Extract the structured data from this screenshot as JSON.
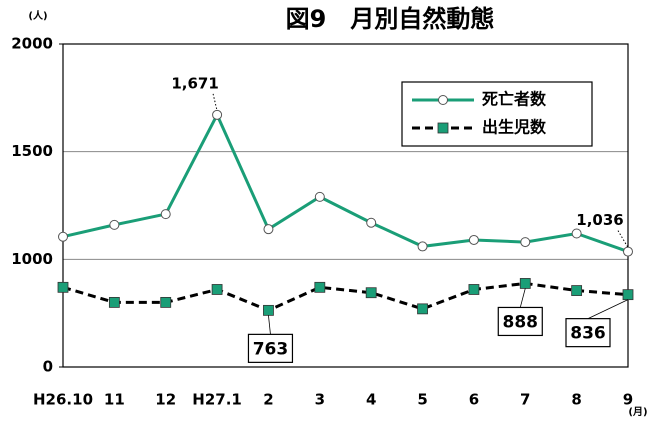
{
  "chart_data": {
    "type": "line",
    "title": "図9　月別自然動態",
    "y_label": "(人)",
    "x_label": "(月)",
    "categories": [
      "H26.10",
      "11",
      "12",
      "H27.1",
      "2",
      "3",
      "4",
      "5",
      "6",
      "7",
      "8",
      "9"
    ],
    "series": [
      {
        "name": "死亡者数",
        "color": "#1a9e77",
        "marker": "circle",
        "dash": false,
        "values": [
          1105,
          1160,
          1210,
          1671,
          1140,
          1290,
          1170,
          1060,
          1090,
          1080,
          1120,
          1036
        ],
        "value_labels": [
          null,
          null,
          null,
          "1,671",
          null,
          null,
          null,
          null,
          null,
          null,
          null,
          "1,036"
        ]
      },
      {
        "name": "出生児数",
        "color": "#000000",
        "marker_color": "#1a9e77",
        "marker": "square",
        "dash": true,
        "values": [
          870,
          800,
          800,
          860,
          763,
          870,
          845,
          770,
          860,
          888,
          855,
          836
        ],
        "value_labels": [
          null,
          null,
          null,
          null,
          "763",
          null,
          null,
          null,
          null,
          "888",
          null,
          "836"
        ]
      }
    ],
    "ylim": [
      0,
      2000
    ],
    "yticks": [
      0,
      1000,
      1500,
      2000
    ],
    "axis_break": true,
    "grid": true,
    "legend": "upper right"
  }
}
